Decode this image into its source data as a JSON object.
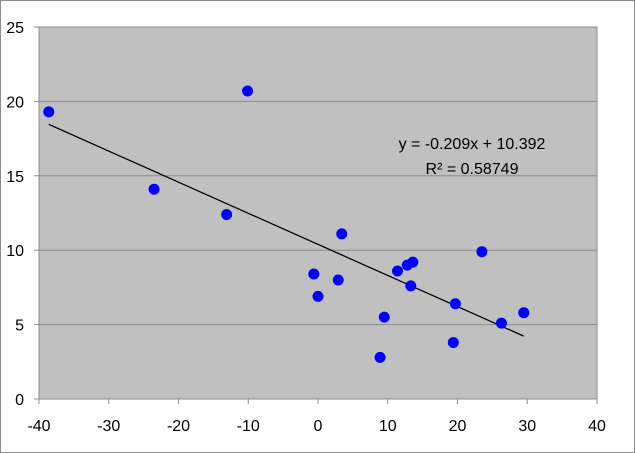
{
  "chart_data": {
    "type": "scatter",
    "title": "",
    "xlabel": "",
    "ylabel": "",
    "xlim": [
      -40,
      40
    ],
    "ylim": [
      0,
      25
    ],
    "x_ticks": [
      -40,
      -30,
      -20,
      -10,
      0,
      10,
      20,
      30,
      40
    ],
    "y_ticks": [
      0,
      5,
      10,
      15,
      20,
      25
    ],
    "x_tick_labels": [
      "-40",
      "-30",
      "-20",
      "-10",
      "0",
      "10",
      "20",
      "30",
      "40"
    ],
    "y_tick_labels": [
      "0",
      "5",
      "10",
      "15",
      "20",
      "25"
    ],
    "grid": "horizontal",
    "legend": "none",
    "plot_background": "#c0c0c0",
    "marker_color": "#0000ff",
    "trendline_color": "#000000",
    "series": [
      {
        "points": [
          {
            "x": -38.6,
            "y": 19.3
          },
          {
            "x": -23.5,
            "y": 14.1
          },
          {
            "x": -13.1,
            "y": 12.4
          },
          {
            "x": -10.1,
            "y": 20.7
          },
          {
            "x": -0.6,
            "y": 8.4
          },
          {
            "x": 0.0,
            "y": 6.9
          },
          {
            "x": 2.9,
            "y": 8.0
          },
          {
            "x": 3.4,
            "y": 11.1
          },
          {
            "x": 8.9,
            "y": 2.8
          },
          {
            "x": 9.5,
            "y": 5.5
          },
          {
            "x": 11.4,
            "y": 8.6
          },
          {
            "x": 12.8,
            "y": 9.0
          },
          {
            "x": 13.3,
            "y": 7.6
          },
          {
            "x": 13.6,
            "y": 9.2
          },
          {
            "x": 19.4,
            "y": 3.8
          },
          {
            "x": 19.7,
            "y": 6.4
          },
          {
            "x": 23.5,
            "y": 9.9
          },
          {
            "x": 26.3,
            "y": 5.1
          },
          {
            "x": 29.5,
            "y": 5.8
          }
        ]
      }
    ],
    "trendline": {
      "slope": -0.209,
      "intercept": 10.392,
      "x_start": -38.6,
      "x_end": 29.5,
      "equation_text": "y = -0.209x + 10.392",
      "r_squared_text": "R² = 0.58749"
    }
  }
}
